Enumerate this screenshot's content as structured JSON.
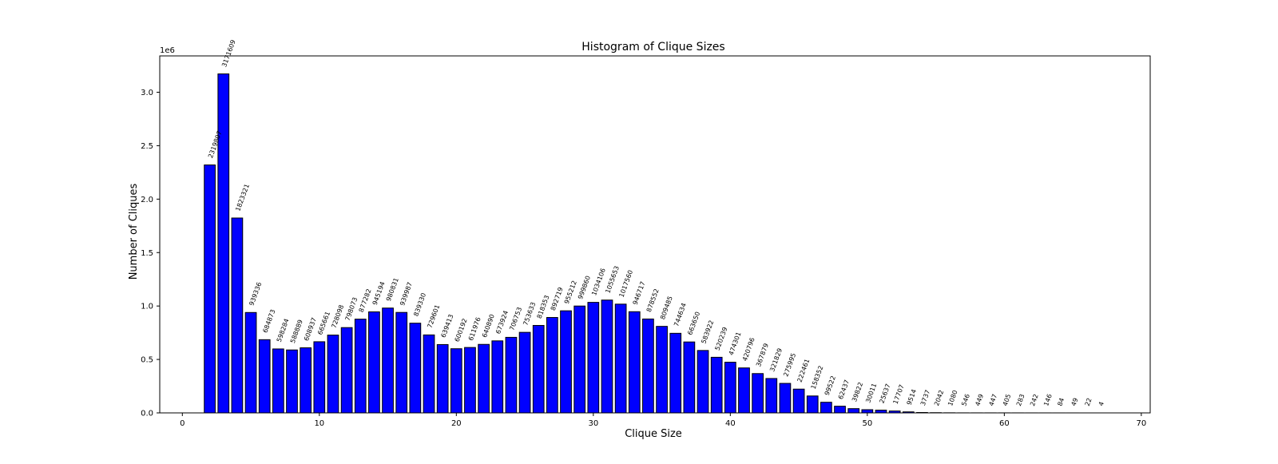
{
  "chart_data": {
    "type": "bar",
    "title": "Histogram of Clique Sizes",
    "xlabel": "Clique Size",
    "ylabel": "Number of Cliques",
    "offset_text": "1e6",
    "xlim": [
      -1.65,
      70.65
    ],
    "ylim": [
      0,
      3340000
    ],
    "x_ticks": [
      0,
      10,
      20,
      30,
      40,
      50,
      60,
      70
    ],
    "y_ticks": [
      0,
      500000,
      1000000,
      1500000,
      2000000,
      2500000,
      3000000
    ],
    "y_tick_labels": [
      "0.0",
      "0.5",
      "1.0",
      "1.5",
      "2.0",
      "2.5",
      "3.0"
    ],
    "bar_color": "#0000ff",
    "edge_color": "#000000",
    "grid": false,
    "x": [
      2,
      3,
      4,
      5,
      6,
      7,
      8,
      9,
      10,
      11,
      12,
      13,
      14,
      15,
      16,
      17,
      18,
      19,
      20,
      21,
      22,
      23,
      24,
      25,
      26,
      27,
      28,
      29,
      30,
      31,
      32,
      33,
      34,
      35,
      36,
      37,
      38,
      39,
      40,
      41,
      42,
      43,
      44,
      45,
      46,
      47,
      48,
      49,
      50,
      51,
      52,
      53,
      54,
      55,
      56,
      57,
      58,
      59,
      60,
      61,
      62,
      63,
      64,
      65,
      66,
      67
    ],
    "values": [
      2319807,
      3171609,
      1823321,
      939336,
      684873,
      598284,
      588889,
      608937,
      665661,
      728098,
      798073,
      877282,
      945194,
      980831,
      939987,
      839330,
      729601,
      639413,
      600192,
      611976,
      640890,
      673924,
      706753,
      753633,
      818353,
      892719,
      955212,
      999860,
      1034106,
      1055653,
      1017560,
      946717,
      878552,
      809485,
      744634,
      663650,
      583922,
      520239,
      474301,
      420796,
      367879,
      321829,
      275995,
      222461,
      158352,
      99522,
      62437,
      39822,
      30011,
      25637,
      17707,
      9514,
      3737,
      2042,
      1080,
      546,
      449,
      447,
      405,
      283,
      242,
      146,
      84,
      49,
      22,
      4
    ]
  }
}
